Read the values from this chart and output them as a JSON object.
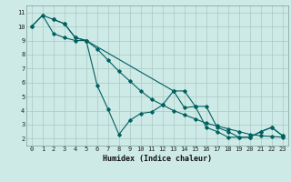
{
  "xlabel": "Humidex (Indice chaleur)",
  "xlim": [
    -0.5,
    23.5
  ],
  "ylim": [
    1.5,
    11.5
  ],
  "xticks": [
    0,
    1,
    2,
    3,
    4,
    5,
    6,
    7,
    8,
    9,
    10,
    11,
    12,
    13,
    14,
    15,
    16,
    17,
    18,
    19,
    20,
    21,
    22,
    23
  ],
  "yticks": [
    2,
    3,
    4,
    5,
    6,
    7,
    8,
    9,
    10,
    11
  ],
  "bg_color": "#ceeae6",
  "grid_color": "#a8c8c4",
  "line_color": "#006060",
  "line1_x": [
    0,
    1,
    2,
    3,
    4,
    5,
    6,
    7,
    8,
    9,
    10,
    11,
    12,
    13,
    14,
    15,
    16,
    17,
    18,
    19,
    20,
    21,
    22,
    23
  ],
  "line1_y": [
    10.0,
    10.8,
    9.5,
    9.2,
    9.0,
    9.0,
    5.8,
    4.1,
    2.3,
    3.3,
    3.8,
    3.9,
    4.4,
    5.4,
    4.2,
    4.3,
    2.8,
    2.5,
    2.1,
    2.1,
    2.1,
    2.5,
    2.8,
    2.2
  ],
  "line2_x": [
    2,
    3,
    4,
    5,
    13,
    14,
    15,
    16,
    17,
    18,
    19,
    20,
    21,
    22,
    23
  ],
  "line2_y": [
    10.5,
    10.2,
    9.2,
    9.0,
    5.4,
    5.4,
    4.3,
    4.3,
    2.8,
    2.5,
    2.1,
    2.1,
    2.5,
    2.8,
    2.2
  ],
  "line3_x": [
    0,
    1,
    2,
    3,
    4,
    5,
    6,
    7,
    8,
    9,
    10,
    11,
    12,
    13,
    14,
    15,
    16,
    17,
    18,
    19,
    20,
    21,
    22,
    23
  ],
  "line3_y": [
    10.0,
    10.8,
    10.5,
    10.2,
    9.2,
    9.0,
    8.4,
    7.6,
    6.8,
    6.1,
    5.4,
    4.8,
    4.4,
    4.0,
    3.7,
    3.4,
    3.1,
    2.9,
    2.7,
    2.5,
    2.3,
    2.2,
    2.15,
    2.1
  ]
}
